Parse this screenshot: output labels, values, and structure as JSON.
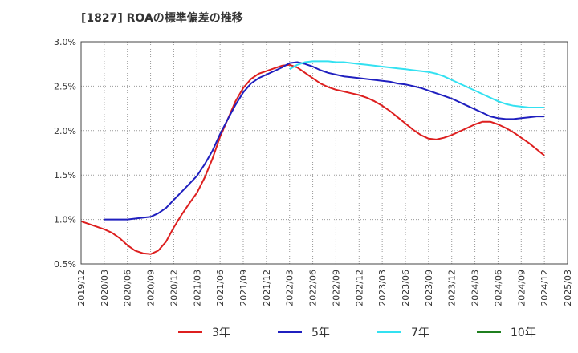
{
  "chart_data": {
    "type": "line",
    "title": "[1827]  ROAの標準偏差の推移",
    "xlabel": "",
    "ylabel": "",
    "ylim": [
      0.5,
      3.0
    ],
    "y_ticks": [
      "0.5%",
      "1.0%",
      "1.5%",
      "2.0%",
      "2.5%",
      "3.0%"
    ],
    "x_ticks": [
      "2019/12",
      "2020/03",
      "2020/06",
      "2020/09",
      "2020/12",
      "2021/03",
      "2021/06",
      "2021/09",
      "2021/12",
      "2022/03",
      "2022/06",
      "2022/09",
      "2022/12",
      "2023/03",
      "2023/06",
      "2023/09",
      "2023/12",
      "2024/03",
      "2024/06",
      "2024/09",
      "2024/12",
      "2025/03"
    ],
    "grid": true,
    "legend_position": "bottom",
    "series": [
      {
        "name": "3年",
        "color": "#dd1f1f",
        "points": [
          [
            "2019/12",
            0.98
          ],
          [
            "2020/03",
            0.89
          ],
          [
            "2020/04",
            0.85
          ],
          [
            "2020/05",
            0.79
          ],
          [
            "2020/06",
            0.71
          ],
          [
            "2020/07",
            0.65
          ],
          [
            "2020/08",
            0.62
          ],
          [
            "2020/09",
            0.61
          ],
          [
            "2020/10",
            0.65
          ],
          [
            "2020/11",
            0.75
          ],
          [
            "2020/12",
            0.91
          ],
          [
            "2021/01",
            1.05
          ],
          [
            "2021/02",
            1.18
          ],
          [
            "2021/03",
            1.3
          ],
          [
            "2021/04",
            1.47
          ],
          [
            "2021/05",
            1.68
          ],
          [
            "2021/06",
            1.93
          ],
          [
            "2021/07",
            2.13
          ],
          [
            "2021/08",
            2.33
          ],
          [
            "2021/09",
            2.48
          ],
          [
            "2021/10",
            2.58
          ],
          [
            "2021/11",
            2.64
          ],
          [
            "2021/12",
            2.67
          ],
          [
            "2022/01",
            2.7
          ],
          [
            "2022/02",
            2.73
          ],
          [
            "2022/03",
            2.74
          ],
          [
            "2022/04",
            2.71
          ],
          [
            "2022/05",
            2.65
          ],
          [
            "2022/06",
            2.59
          ],
          [
            "2022/07",
            2.53
          ],
          [
            "2022/08",
            2.49
          ],
          [
            "2022/09",
            2.46
          ],
          [
            "2022/10",
            2.44
          ],
          [
            "2022/11",
            2.42
          ],
          [
            "2022/12",
            2.4
          ],
          [
            "2023/01",
            2.37
          ],
          [
            "2023/02",
            2.33
          ],
          [
            "2023/03",
            2.28
          ],
          [
            "2023/04",
            2.22
          ],
          [
            "2023/05",
            2.15
          ],
          [
            "2023/06",
            2.08
          ],
          [
            "2023/07",
            2.01
          ],
          [
            "2023/08",
            1.95
          ],
          [
            "2023/09",
            1.91
          ],
          [
            "2023/10",
            1.9
          ],
          [
            "2023/11",
            1.92
          ],
          [
            "2023/12",
            1.95
          ],
          [
            "2024/01",
            1.99
          ],
          [
            "2024/02",
            2.03
          ],
          [
            "2024/03",
            2.07
          ],
          [
            "2024/04",
            2.1
          ],
          [
            "2024/05",
            2.1
          ],
          [
            "2024/06",
            2.07
          ],
          [
            "2024/07",
            2.03
          ],
          [
            "2024/08",
            1.98
          ],
          [
            "2024/09",
            1.92
          ],
          [
            "2024/10",
            1.86
          ],
          [
            "2024/11",
            1.79
          ],
          [
            "2024/12",
            1.72
          ]
        ]
      },
      {
        "name": "5年",
        "color": "#1f1fbf",
        "points": [
          [
            "2020/03",
            1.0
          ],
          [
            "2020/04",
            1.0
          ],
          [
            "2020/05",
            1.0
          ],
          [
            "2020/06",
            1.0
          ],
          [
            "2020/07",
            1.01
          ],
          [
            "2020/08",
            1.02
          ],
          [
            "2020/09",
            1.03
          ],
          [
            "2020/10",
            1.07
          ],
          [
            "2020/11",
            1.13
          ],
          [
            "2020/12",
            1.22
          ],
          [
            "2021/01",
            1.31
          ],
          [
            "2021/02",
            1.4
          ],
          [
            "2021/03",
            1.49
          ],
          [
            "2021/04",
            1.62
          ],
          [
            "2021/05",
            1.77
          ],
          [
            "2021/06",
            1.96
          ],
          [
            "2021/07",
            2.13
          ],
          [
            "2021/08",
            2.29
          ],
          [
            "2021/09",
            2.43
          ],
          [
            "2021/10",
            2.53
          ],
          [
            "2021/11",
            2.59
          ],
          [
            "2021/12",
            2.63
          ],
          [
            "2022/01",
            2.67
          ],
          [
            "2022/02",
            2.71
          ],
          [
            "2022/03",
            2.76
          ],
          [
            "2022/04",
            2.77
          ],
          [
            "2022/05",
            2.75
          ],
          [
            "2022/06",
            2.72
          ],
          [
            "2022/07",
            2.68
          ],
          [
            "2022/08",
            2.65
          ],
          [
            "2022/09",
            2.63
          ],
          [
            "2022/10",
            2.61
          ],
          [
            "2022/11",
            2.6
          ],
          [
            "2022/12",
            2.59
          ],
          [
            "2023/01",
            2.58
          ],
          [
            "2023/02",
            2.57
          ],
          [
            "2023/03",
            2.56
          ],
          [
            "2023/04",
            2.55
          ],
          [
            "2023/05",
            2.53
          ],
          [
            "2023/06",
            2.52
          ],
          [
            "2023/07",
            2.5
          ],
          [
            "2023/08",
            2.48
          ],
          [
            "2023/09",
            2.45
          ],
          [
            "2023/10",
            2.42
          ],
          [
            "2023/11",
            2.39
          ],
          [
            "2023/12",
            2.36
          ],
          [
            "2024/01",
            2.32
          ],
          [
            "2024/02",
            2.28
          ],
          [
            "2024/03",
            2.24
          ],
          [
            "2024/04",
            2.2
          ],
          [
            "2024/05",
            2.16
          ],
          [
            "2024/06",
            2.14
          ],
          [
            "2024/07",
            2.13
          ],
          [
            "2024/08",
            2.13
          ],
          [
            "2024/09",
            2.14
          ],
          [
            "2024/10",
            2.15
          ],
          [
            "2024/11",
            2.16
          ],
          [
            "2024/12",
            2.16
          ]
        ]
      },
      {
        "name": "7年",
        "color": "#33e1f1",
        "points": [
          [
            "2022/03",
            2.69
          ],
          [
            "2022/04",
            2.74
          ],
          [
            "2022/05",
            2.77
          ],
          [
            "2022/06",
            2.78
          ],
          [
            "2022/07",
            2.78
          ],
          [
            "2022/08",
            2.78
          ],
          [
            "2022/09",
            2.77
          ],
          [
            "2022/10",
            2.77
          ],
          [
            "2022/11",
            2.76
          ],
          [
            "2022/12",
            2.75
          ],
          [
            "2023/01",
            2.74
          ],
          [
            "2023/02",
            2.73
          ],
          [
            "2023/03",
            2.72
          ],
          [
            "2023/04",
            2.71
          ],
          [
            "2023/05",
            2.7
          ],
          [
            "2023/06",
            2.69
          ],
          [
            "2023/07",
            2.68
          ],
          [
            "2023/08",
            2.67
          ],
          [
            "2023/09",
            2.66
          ],
          [
            "2023/10",
            2.64
          ],
          [
            "2023/11",
            2.61
          ],
          [
            "2023/12",
            2.57
          ],
          [
            "2024/01",
            2.53
          ],
          [
            "2024/02",
            2.49
          ],
          [
            "2024/03",
            2.45
          ],
          [
            "2024/04",
            2.41
          ],
          [
            "2024/05",
            2.37
          ],
          [
            "2024/06",
            2.33
          ],
          [
            "2024/07",
            2.3
          ],
          [
            "2024/08",
            2.28
          ],
          [
            "2024/09",
            2.27
          ],
          [
            "2024/10",
            2.26
          ],
          [
            "2024/11",
            2.26
          ],
          [
            "2024/12",
            2.26
          ]
        ]
      },
      {
        "name": "10年",
        "color": "#1f7f1f",
        "points": []
      }
    ]
  }
}
